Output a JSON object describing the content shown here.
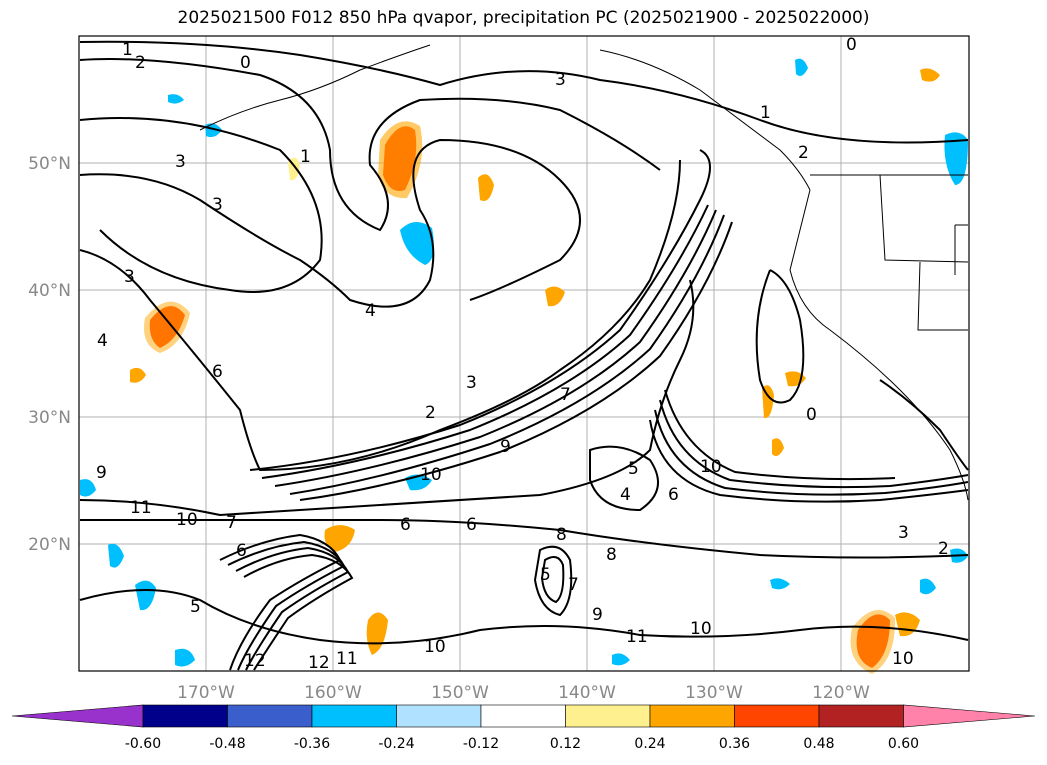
{
  "title": "2025021500 F012 850 hPa qvapor, precipitation PC (2025021900 - 2025022000)",
  "map": {
    "lat_labels": [
      "50°N",
      "40°N",
      "30°N",
      "20°N"
    ],
    "lon_labels": [
      "170°W",
      "160°W",
      "150°W",
      "140°W",
      "130°W",
      "120°W"
    ],
    "label_color": "#888888",
    "contour_labels": [
      "1",
      "2",
      "0",
      "0",
      "3",
      "1",
      "2",
      "3",
      "3",
      "3",
      "4",
      "4",
      "6",
      "3",
      "2",
      "9",
      "11",
      "10",
      "7",
      "6",
      "9",
      "10",
      "5",
      "4",
      "6",
      "6",
      "8",
      "7",
      "6",
      "8",
      "9",
      "11",
      "10",
      "12",
      "11",
      "10",
      "12",
      "10",
      "2",
      "3",
      "0",
      "10",
      "1",
      "5",
      "5",
      "7"
    ]
  },
  "colorbar": {
    "ticks": [
      "-0.60",
      "-0.48",
      "-0.36",
      "-0.24",
      "-0.12",
      "0.12",
      "0.24",
      "0.36",
      "0.48",
      "0.60"
    ],
    "colors": [
      "#9932cc",
      "#00008b",
      "#3a5fcd",
      "#00bfff",
      "#b0e2ff",
      "#ffffff",
      "#fff08f",
      "#ffa500",
      "#ff4500",
      "#b22222",
      "#ff82ab"
    ]
  }
}
